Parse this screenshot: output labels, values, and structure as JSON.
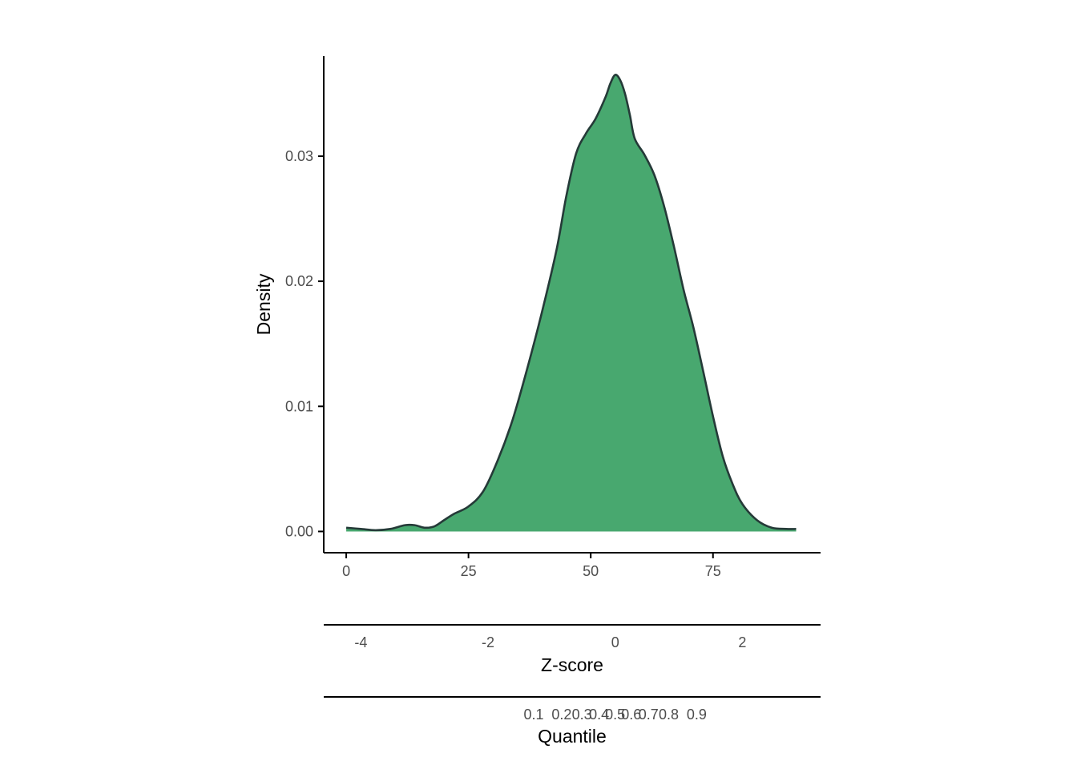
{
  "chart_data": {
    "type": "area",
    "title": "",
    "ylabel": "Density",
    "xlabel": "",
    "ylim": [
      -0.0017,
      0.038
    ],
    "xlim": [
      -4.6,
      97
    ],
    "grid": false,
    "legend": "none",
    "colors": {
      "fill": "#48a86f",
      "line": "#253a38",
      "axis": "#000000"
    },
    "x_ticks": [
      0,
      25,
      50,
      75
    ],
    "x_tick_labels": [
      "0",
      "25",
      "50",
      "75"
    ],
    "y_ticks": [
      0,
      0.01,
      0.02,
      0.03
    ],
    "y_tick_labels": [
      "0.00",
      "0.01",
      "0.02",
      "0.03"
    ],
    "series": [
      {
        "x": [
          0,
          3,
          6,
          9,
          12,
          14,
          16,
          18,
          20,
          22,
          25,
          28,
          31,
          34,
          37,
          40,
          43,
          45,
          47,
          49,
          51,
          53,
          54,
          55,
          56,
          57,
          58,
          59,
          61,
          63,
          65,
          67,
          69,
          71,
          73,
          75,
          77,
          79,
          81,
          84,
          87,
          90,
          92
        ],
        "y": [
          0.0003,
          0.0002,
          0.0001,
          0.0002,
          0.0005,
          0.0005,
          0.0003,
          0.0004,
          0.0009,
          0.0014,
          0.002,
          0.0032,
          0.0057,
          0.0089,
          0.013,
          0.0175,
          0.0225,
          0.0268,
          0.0302,
          0.0318,
          0.033,
          0.0347,
          0.0358,
          0.0365,
          0.0361,
          0.035,
          0.0333,
          0.0314,
          0.0301,
          0.0285,
          0.026,
          0.0228,
          0.0193,
          0.0163,
          0.0128,
          0.0092,
          0.006,
          0.0038,
          0.0022,
          0.0009,
          0.0003,
          0.0002,
          0.0002
        ]
      }
    ],
    "secondary_axes": [
      {
        "title": "Z-score",
        "ticks": [
          -4,
          -2,
          0,
          2
        ],
        "tick_labels": [
          "-4",
          "-2",
          "0",
          "2"
        ]
      },
      {
        "title": "Quantile",
        "ticks": [
          0.1,
          0.2,
          0.3,
          0.4,
          0.5,
          0.6,
          0.7,
          0.8,
          0.9
        ],
        "tick_labels": [
          "0.1",
          "0.2",
          "0.3",
          "0.4",
          "0.5",
          "0.6",
          "0.7",
          "0.8",
          "0.9"
        ]
      }
    ]
  }
}
